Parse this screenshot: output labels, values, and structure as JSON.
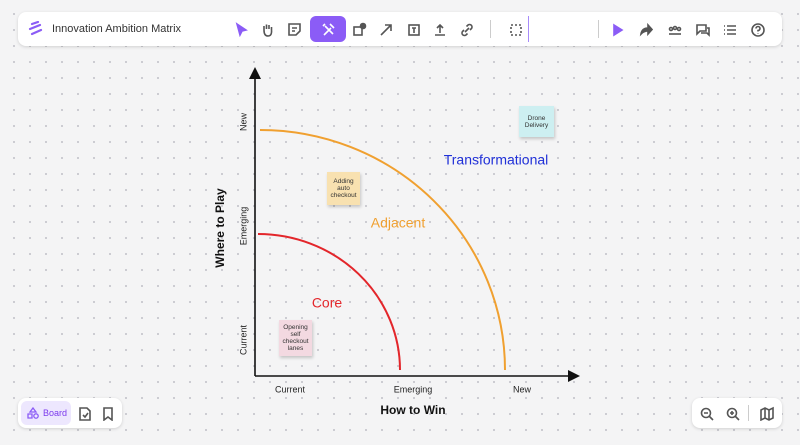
{
  "toolbar": {
    "title": "Innovation Ambition Matrix"
  },
  "diagram": {
    "x_axis": {
      "label": "How to Win",
      "ticks": [
        "Current",
        "Emerging",
        "New"
      ]
    },
    "y_axis": {
      "label": "Where to Play",
      "ticks": [
        "Current",
        "Emerging",
        "New"
      ]
    },
    "zones": [
      "Core",
      "Adjacent",
      "Transformational"
    ],
    "notes": [
      "Adding auto checkout",
      "Drone Delivery",
      "Opening self checkout lanes"
    ]
  },
  "bottom_bar": {
    "board": "Board"
  }
}
